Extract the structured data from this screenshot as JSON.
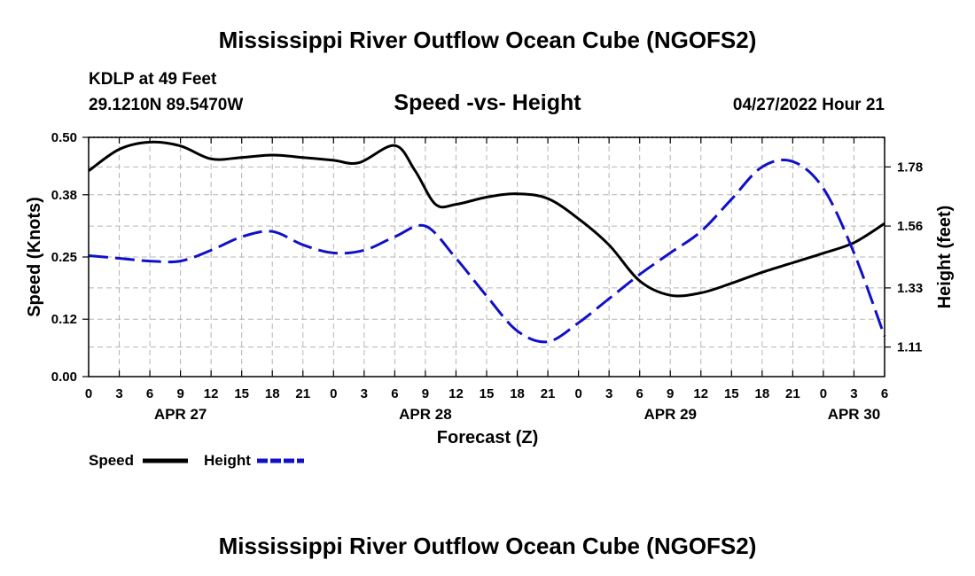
{
  "header": {
    "title": "Mississippi River Outflow Ocean Cube (NGOFS2)",
    "station": "KDLP at 49 Feet",
    "coords": "29.1210N  89.5470W",
    "plot_title": "Speed -vs- Height",
    "datetime": "04/27/2022 Hour 21",
    "footer_title": "Mississippi River Outflow Ocean Cube (NGOFS2)"
  },
  "legend": {
    "speed_label": "Speed",
    "height_label": "Height"
  },
  "colors": {
    "speed": "#000000",
    "height": "#1010c8",
    "grid": "#b4b4b4"
  },
  "chart_data": {
    "type": "line",
    "title": "Speed -vs- Height",
    "xlabel": "Forecast (Z)",
    "ylabel": "Speed (Knots)",
    "y2label": "Height (feet)",
    "x_unit": "hours from APR 27 00Z",
    "xlim": [
      0,
      78
    ],
    "ylim": [
      0,
      0.5
    ],
    "y2lim": [
      1.0,
      1.89
    ],
    "x_ticks": [
      0,
      3,
      6,
      9,
      12,
      15,
      18,
      21,
      24,
      27,
      30,
      33,
      36,
      39,
      42,
      45,
      48,
      51,
      54,
      57,
      60,
      63,
      66,
      69,
      72,
      75,
      78
    ],
    "x_tick_labels": [
      "0",
      "3",
      "6",
      "9",
      "12",
      "15",
      "18",
      "21",
      "0",
      "3",
      "6",
      "9",
      "12",
      "15",
      "18",
      "21",
      "0",
      "3",
      "6",
      "9",
      "12",
      "15",
      "18",
      "21",
      "0",
      "3",
      "6"
    ],
    "day_labels": [
      {
        "x": 9,
        "label": "APR 27"
      },
      {
        "x": 33,
        "label": "APR 28"
      },
      {
        "x": 57,
        "label": "APR 29"
      },
      {
        "x": 75,
        "label": "APR 30"
      }
    ],
    "y_ticks": [
      0.0,
      0.12,
      0.25,
      0.38,
      0.5
    ],
    "y_tick_labels": [
      "0.00",
      "0.12",
      "0.25",
      "0.38",
      "0.50"
    ],
    "y2_ticks": [
      1.11,
      1.33,
      1.56,
      1.78
    ],
    "y2_tick_labels": [
      "1.11",
      "1.33",
      "1.56",
      "1.78"
    ],
    "series": [
      {
        "name": "Speed",
        "axis": "left",
        "style": "solid",
        "x": [
          0,
          3,
          6,
          9,
          12,
          15,
          18,
          21,
          24,
          26.5,
          30,
          32,
          34,
          36,
          39,
          42,
          45,
          48,
          51,
          54,
          57,
          60,
          63,
          66,
          69,
          72,
          75,
          78
        ],
        "values": [
          0.43,
          0.475,
          0.49,
          0.482,
          0.455,
          0.458,
          0.463,
          0.458,
          0.452,
          0.447,
          0.483,
          0.43,
          0.36,
          0.36,
          0.375,
          0.382,
          0.372,
          0.33,
          0.275,
          0.2,
          0.17,
          0.175,
          0.195,
          0.218,
          0.238,
          0.258,
          0.28,
          0.32
        ]
      },
      {
        "name": "Height",
        "axis": "right",
        "style": "dashed",
        "x": [
          0,
          3,
          6,
          9,
          12,
          15,
          18,
          21,
          24,
          27,
          30,
          33,
          36,
          39,
          42,
          45,
          48,
          51,
          54,
          57,
          60,
          63,
          66,
          69,
          72,
          75,
          78
        ],
        "values": [
          1.45,
          1.44,
          1.43,
          1.43,
          1.47,
          1.52,
          1.54,
          1.49,
          1.46,
          1.47,
          1.52,
          1.56,
          1.44,
          1.3,
          1.17,
          1.13,
          1.2,
          1.29,
          1.38,
          1.46,
          1.54,
          1.66,
          1.78,
          1.8,
          1.7,
          1.46,
          1.15
        ]
      }
    ]
  }
}
